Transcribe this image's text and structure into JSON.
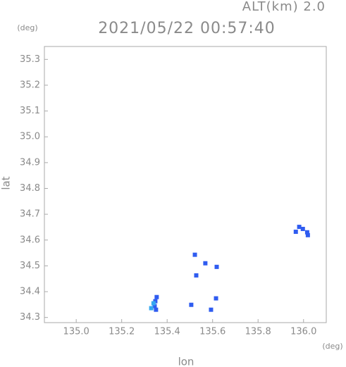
{
  "chart_data": {
    "type": "scatter",
    "title": "2021/05/22 00:57:40",
    "subtitle": "ALT(km) 2.0",
    "xlabel": "lon",
    "ylabel": "lat",
    "x_unit": "(deg)",
    "y_unit": "(deg)",
    "xlim": [
      134.86,
      136.1
    ],
    "ylim": [
      34.28,
      35.35
    ],
    "xticks": [
      {
        "value": 135.0,
        "label": "135.0"
      },
      135.2,
      135.4,
      135.6,
      135.8,
      {
        "value": 136.0,
        "label": "136.0"
      }
    ],
    "yticks": [
      34.3,
      34.4,
      34.5,
      34.6,
      34.7,
      34.8,
      34.9,
      {
        "value": 35.0,
        "label": "35.0"
      },
      35.1,
      35.2,
      35.3
    ],
    "series": [
      {
        "color": "#2f5cf0",
        "x": [
          135.345,
          135.348,
          135.351,
          135.354,
          135.522,
          135.528,
          135.568,
          135.618,
          135.593,
          135.615,
          135.506,
          135.981,
          135.997,
          136.016,
          136.019,
          135.966
        ],
        "values": [
          34.344,
          34.363,
          34.33,
          34.379,
          34.543,
          34.463,
          34.51,
          34.496,
          34.33,
          34.374,
          34.349,
          34.651,
          34.643,
          34.63,
          34.619,
          34.632
        ]
      },
      {
        "color": "#35a8f0",
        "x": [
          135.33,
          135.34
        ],
        "values": [
          34.336,
          34.355
        ]
      }
    ]
  }
}
